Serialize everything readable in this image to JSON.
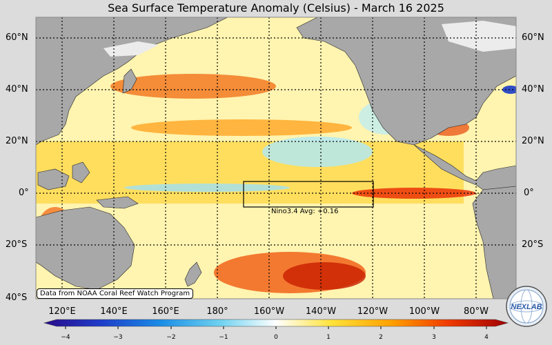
{
  "title": "Sea Surface Temperature Anomaly (Celsius) - March 16 2025",
  "lat_labels_left": [
    "60°N",
    "40°N",
    "20°N",
    "0°",
    "20°S",
    "40°S"
  ],
  "lat_labels_right": [
    "60°N",
    "40°N",
    "20°N",
    "0°",
    "20°S"
  ],
  "lon_labels": [
    "120°E",
    "140°E",
    "160°E",
    "180°",
    "160°W",
    "140°W",
    "120°W",
    "100°W",
    "80°W"
  ],
  "credit": "Data from NOAA Coral Reef Watch Program",
  "nino_label": "Nino3.4 Avg: +0.16",
  "colorbar": {
    "ticks": [
      "−4",
      "−3",
      "−2",
      "−1",
      "0",
      "1",
      "2",
      "3",
      "4"
    ],
    "colors": [
      "#2a0a8a",
      "#1e3cc8",
      "#1a8ce6",
      "#6fd2f0",
      "#ffffff",
      "#ffe23a",
      "#ffa000",
      "#f03c00",
      "#a00000"
    ]
  },
  "logo_text": "NEXLAB",
  "colors": {
    "land": "#a8a8a8",
    "ocean_base": "#fff7c0"
  }
}
